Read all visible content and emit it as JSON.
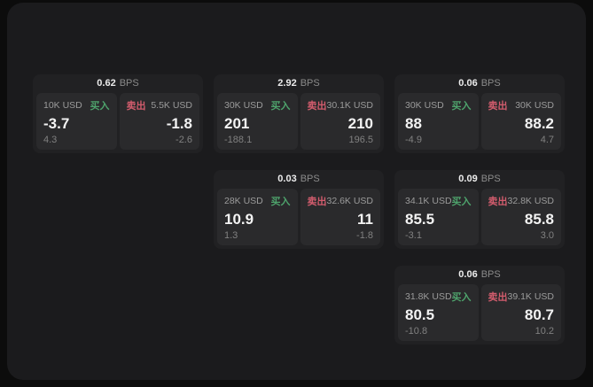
{
  "labels": {
    "bps": "BPS",
    "buy": "买入",
    "sell": "卖出"
  },
  "colors": {
    "background": "#0c0c0c",
    "panel": "#1b1b1d",
    "card": "#212123",
    "pane": "#2a2a2c",
    "buy": "#4ea36c",
    "sell": "#d25c6d",
    "primary_text": "#f3f3f3",
    "muted_text": "#9b9b9b"
  },
  "cards": [
    {
      "row": 1,
      "col": 1,
      "spread_bps": "0.62",
      "buy": {
        "size": "10K USD",
        "price": "-3.7",
        "delta": "4.3"
      },
      "sell": {
        "size": "5.5K USD",
        "price": "-1.8",
        "delta": "-2.6"
      }
    },
    {
      "row": 1,
      "col": 2,
      "spread_bps": "2.92",
      "buy": {
        "size": "30K USD",
        "price": "201",
        "delta": "-188.1"
      },
      "sell": {
        "size": "30.1K USD",
        "price": "210",
        "delta": "196.5"
      }
    },
    {
      "row": 1,
      "col": 3,
      "spread_bps": "0.06",
      "buy": {
        "size": "30K USD",
        "price": "88",
        "delta": "-4.9"
      },
      "sell": {
        "size": "30K USD",
        "price": "88.2",
        "delta": "4.7"
      }
    },
    {
      "row": 2,
      "col": 2,
      "spread_bps": "0.03",
      "buy": {
        "size": "28K USD",
        "price": "10.9",
        "delta": "1.3"
      },
      "sell": {
        "size": "32.6K USD",
        "price": "11",
        "delta": "-1.8"
      }
    },
    {
      "row": 2,
      "col": 3,
      "spread_bps": "0.09",
      "buy": {
        "size": "34.1K USD",
        "price": "85.5",
        "delta": "-3.1"
      },
      "sell": {
        "size": "32.8K USD",
        "price": "85.8",
        "delta": "3.0"
      }
    },
    {
      "row": 3,
      "col": 3,
      "spread_bps": "0.06",
      "buy": {
        "size": "31.8K USD",
        "price": "80.5",
        "delta": "-10.8"
      },
      "sell": {
        "size": "39.1K USD",
        "price": "80.7",
        "delta": "10.2"
      }
    }
  ]
}
